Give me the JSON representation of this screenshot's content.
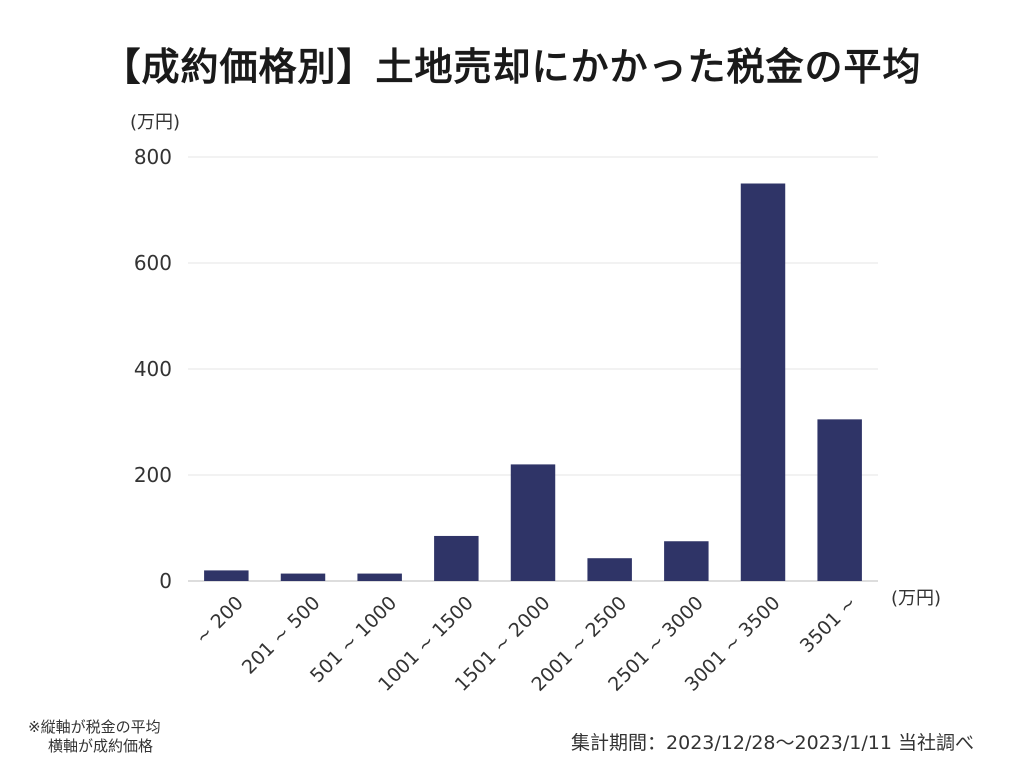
{
  "chart_data": {
    "type": "bar",
    "title": "【成約価格別】土地売却にかかった税金の平均",
    "y_unit_label": "(万円)",
    "x_unit_label": "(万円)",
    "categories": [
      "~ 200",
      "201 ~ 500",
      "501 ~ 1000",
      "1001 ~ 1500",
      "1501 ~ 2000",
      "2001 ~ 2500",
      "2501 ~ 3000",
      "3001 ~ 3500",
      "3501 ~"
    ],
    "values": [
      20,
      14,
      14,
      85,
      220,
      43,
      75,
      750,
      305
    ],
    "ylim": [
      0,
      800
    ],
    "yticks": [
      0,
      200,
      400,
      600,
      800
    ],
    "grid": true,
    "legend": "none",
    "bar_color": "#2f3467"
  },
  "note": {
    "line1": "※縦軸が税金の平均",
    "line2": "横軸が成約価格"
  },
  "source": "集計期間：2023/12/28〜2023/1/11 当社調べ"
}
